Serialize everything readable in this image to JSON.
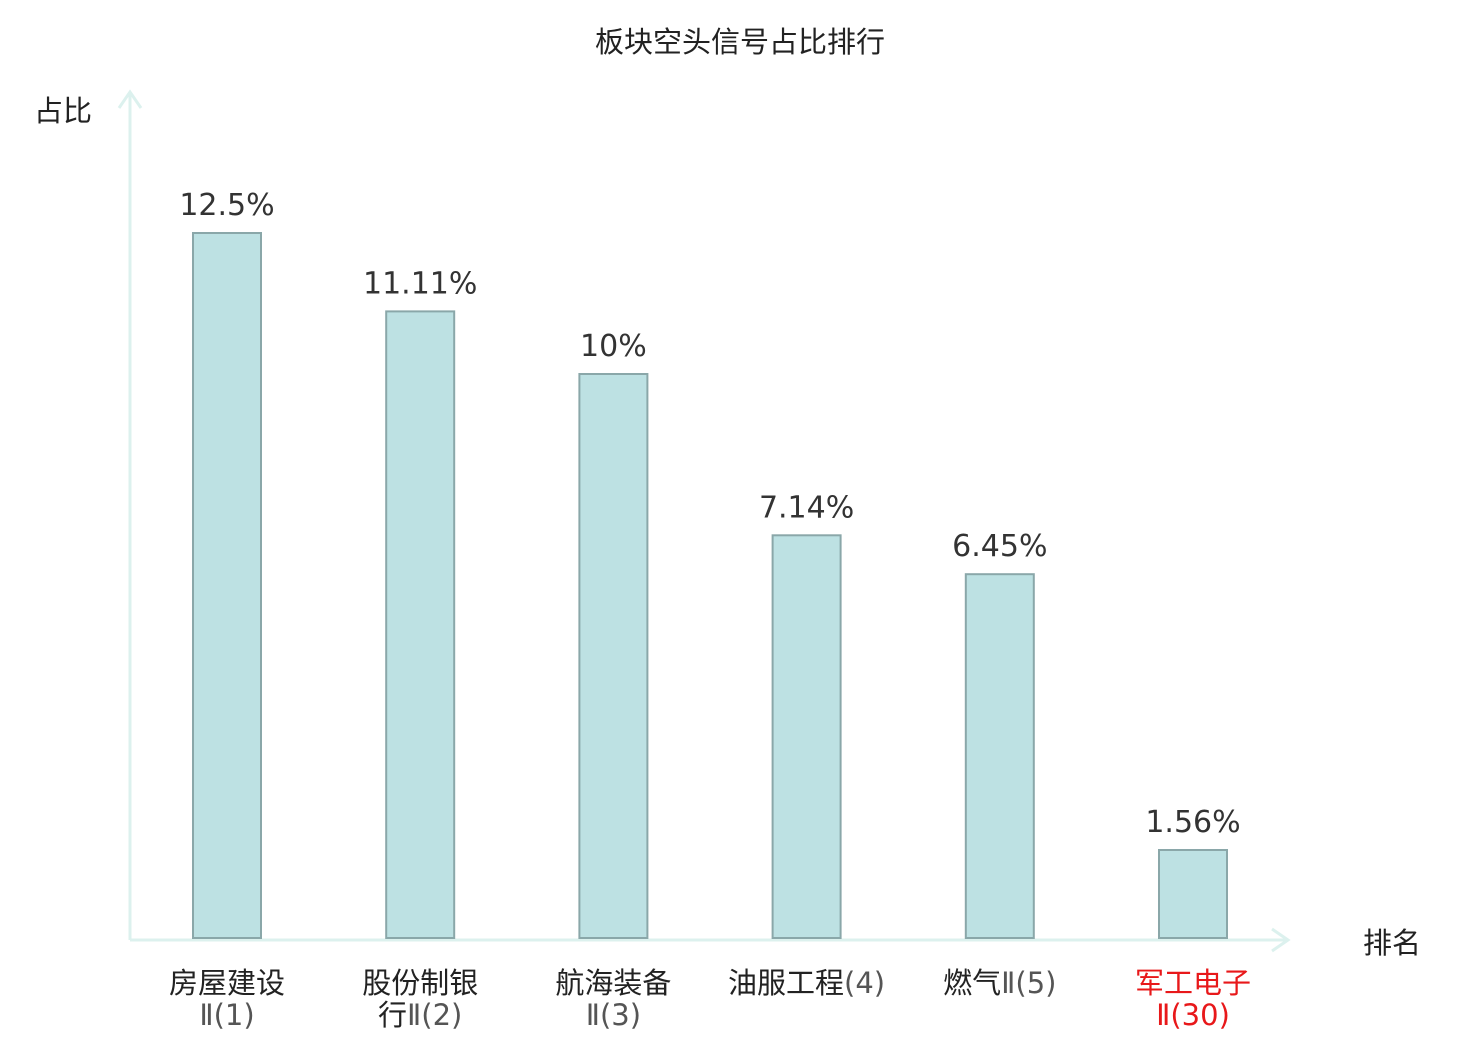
{
  "chart_data": {
    "type": "bar",
    "title": "板块空头信号占比排行",
    "ylabel": "占比",
    "xlabel": "排名",
    "grid": false,
    "ylim": [
      0,
      12.5
    ],
    "categories": [
      {
        "label": "房屋建设Ⅱ(1)",
        "lines": [
          {
            "name": "房屋建设",
            "suffix": ""
          },
          {
            "name": "",
            "suffix": "Ⅱ(1)"
          }
        ],
        "highlight": false
      },
      {
        "label": "股份制银行Ⅱ(2)",
        "lines": [
          {
            "name": "股份制银",
            "suffix": ""
          },
          {
            "name": "行",
            "suffix": "Ⅱ(2)"
          }
        ],
        "highlight": false
      },
      {
        "label": "航海装备Ⅱ(3)",
        "lines": [
          {
            "name": "航海装备",
            "suffix": ""
          },
          {
            "name": "",
            "suffix": "Ⅱ(3)"
          }
        ],
        "highlight": false
      },
      {
        "label": "油服工程(4)",
        "lines": [
          {
            "name": "油服工程",
            "suffix": "(4)"
          }
        ],
        "highlight": false
      },
      {
        "label": "燃气Ⅱ(5)",
        "lines": [
          {
            "name": "燃气",
            "suffix": "Ⅱ(5)"
          }
        ],
        "highlight": false
      },
      {
        "label": "军工电子Ⅱ(30)",
        "lines": [
          {
            "name": "军工电子",
            "suffix": ""
          },
          {
            "name": "",
            "suffix": "Ⅱ(30)"
          }
        ],
        "highlight": true
      }
    ],
    "values": [
      12.5,
      11.11,
      10,
      7.14,
      6.45,
      1.56
    ],
    "value_labels": [
      "12.5%",
      "11.11%",
      "10%",
      "7.14%",
      "6.45%",
      "1.56%"
    ],
    "colors": {
      "bar_fill": "#bde1e3",
      "bar_stroke": "#8aa7a9",
      "axis": "#dcf1ee",
      "label": "#222222",
      "suffix": "#555555",
      "highlight": "#e8181a"
    }
  }
}
